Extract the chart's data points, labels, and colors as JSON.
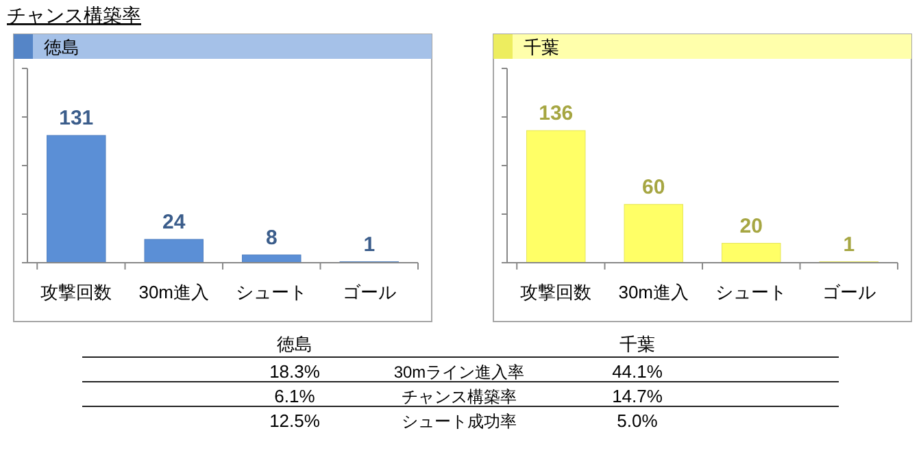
{
  "chart_data": [
    {
      "type": "bar",
      "title": "徳島",
      "categories": [
        "攻撃回数",
        "30m進入",
        "シュート",
        "ゴール"
      ],
      "values": [
        131,
        24,
        8,
        1
      ],
      "color": "#5b8fd6",
      "data_labels": true,
      "ylim": [
        0,
        200
      ],
      "yticks": [
        {
          "value": 0,
          "label": null
        },
        {
          "value": 50,
          "label": null
        },
        {
          "value": 100,
          "label": null
        },
        {
          "value": 150,
          "label": null
        },
        {
          "value": 200,
          "label": null
        }
      ],
      "tick_labels": "x"
    },
    {
      "type": "bar",
      "title": "千葉",
      "categories": [
        "攻撃回数",
        "30m進入",
        "シュート",
        "ゴール"
      ],
      "values": [
        136,
        60,
        20,
        1
      ],
      "color": "#ffff66",
      "data_labels": true,
      "ylim": [
        0,
        200
      ],
      "yticks": [
        {
          "value": 0,
          "label": null
        },
        {
          "value": 50,
          "label": null
        },
        {
          "value": 100,
          "label": null
        },
        {
          "value": 150,
          "label": null
        },
        {
          "value": 200,
          "label": null
        }
      ],
      "tick_labels": "x"
    },
    {
      "type": "other",
      "title": "チャンス構築率",
      "annotations": [
        "徳島",
        "千葉",
        "18.3%",
        "30mライン進入率",
        "44.1%",
        "6.1%",
        "チャンス構築率",
        "14.7%",
        "12.5%",
        "シュート成功率",
        "5.0%"
      ]
    }
  ]
}
